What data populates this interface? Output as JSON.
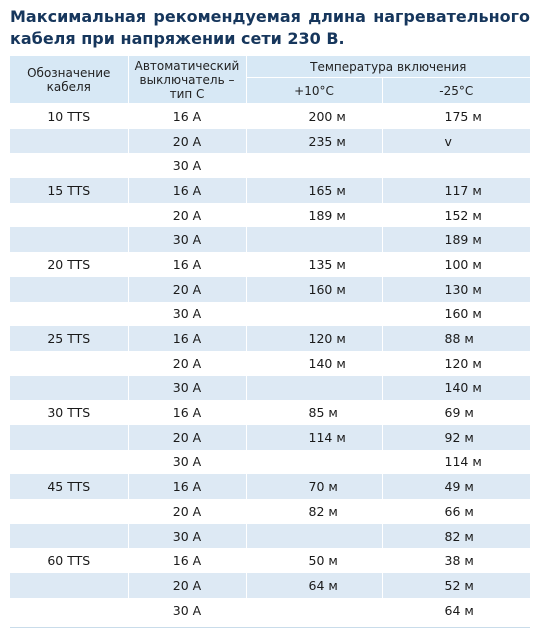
{
  "title": "Максимальная рекомендуемая длина нагревательного кабеля при напряжении сети 230 В.",
  "headers": {
    "cable": "Обозначение кабеля",
    "breaker": "Автоматический выключатель – тип C",
    "temp": "Температура включения",
    "t1": "+10°C",
    "t2": "-25°C"
  },
  "rows": [
    {
      "cable": "10 TTS",
      "breaker": "16 A",
      "t1": "200 м",
      "t2": "175 м"
    },
    {
      "cable": "",
      "breaker": "20 A",
      "t1": "235 м",
      "t2": "v"
    },
    {
      "cable": "",
      "breaker": "30 A",
      "t1": "",
      "t2": ""
    },
    {
      "cable": "15 TTS",
      "breaker": "16 A",
      "t1": "165 м",
      "t2": "117 м"
    },
    {
      "cable": "",
      "breaker": "20 A",
      "t1": "189 м",
      "t2": "152 м"
    },
    {
      "cable": "",
      "breaker": "30 A",
      "t1": "",
      "t2": "189 м"
    },
    {
      "cable": "20 TTS",
      "breaker": "16 A",
      "t1": "135 м",
      "t2": "100 м"
    },
    {
      "cable": "",
      "breaker": "20 A",
      "t1": "160 м",
      "t2": "130 м"
    },
    {
      "cable": "",
      "breaker": "30 A",
      "t1": "",
      "t2": "160 м"
    },
    {
      "cable": "25 TTS",
      "breaker": "16 A",
      "t1": "120 м",
      "t2": "88 м"
    },
    {
      "cable": "",
      "breaker": "20 A",
      "t1": "140 м",
      "t2": "120 м"
    },
    {
      "cable": "",
      "breaker": "30 A",
      "t1": "",
      "t2": "140 м"
    },
    {
      "cable": "30 TTS",
      "breaker": "16 A",
      "t1": "85 м",
      "t2": "69 м"
    },
    {
      "cable": "",
      "breaker": "20 A",
      "t1": "114 м",
      "t2": "92 м"
    },
    {
      "cable": "",
      "breaker": "30 A",
      "t1": "",
      "t2": "114 м"
    },
    {
      "cable": "45 TTS",
      "breaker": "16 A",
      "t1": "70 м",
      "t2": "49 м"
    },
    {
      "cable": "",
      "breaker": "20 A",
      "t1": "82 м",
      "t2": "66 м"
    },
    {
      "cable": "",
      "breaker": "30 A",
      "t1": "",
      "t2": "82 м"
    },
    {
      "cable": "60 TTS",
      "breaker": "16 A",
      "t1": "50 м",
      "t2": "38 м"
    },
    {
      "cable": "",
      "breaker": "20 A",
      "t1": "64 м",
      "t2": "52 м"
    },
    {
      "cable": "",
      "breaker": "30 A",
      "t1": "",
      "t2": "64 м"
    }
  ]
}
